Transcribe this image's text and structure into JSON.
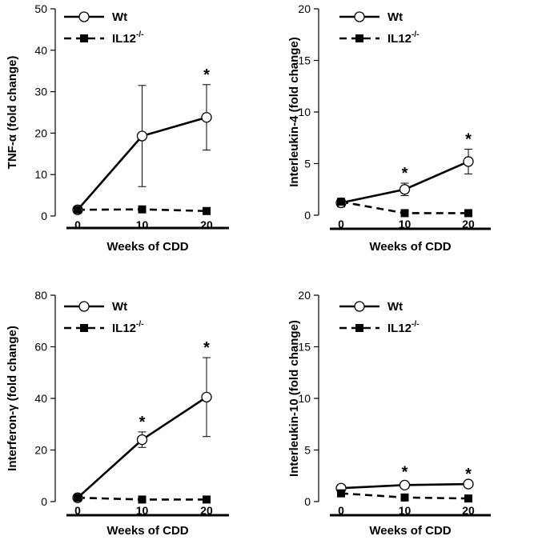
{
  "chart_data": [
    {
      "type": "line",
      "ylabel": "TNF-α (fold change)",
      "xlabel": "Weeks of CDD",
      "x": [
        0,
        10,
        20
      ],
      "x_tick_labels": [
        "0",
        "10",
        "20"
      ],
      "ylim": [
        0,
        50
      ],
      "y_ticks": [
        0,
        10,
        20,
        30,
        40,
        50
      ],
      "legend": {
        "position": "top-left",
        "entries": [
          "Wt",
          "IL12"
        ]
      },
      "legend_superscript": "-/-",
      "series": [
        {
          "name": "Wt",
          "values": [
            1.5,
            19.3,
            23.8
          ],
          "error": [
            0,
            12.2,
            7.9
          ],
          "marker": "open-circle",
          "line": "solid"
        },
        {
          "name": "IL12-/-",
          "values": [
            1.5,
            1.6,
            1.2
          ],
          "error": [
            0,
            0,
            0
          ],
          "marker": "filled-square",
          "line": "dashed"
        }
      ],
      "significance": [
        {
          "x": 20,
          "label": "*"
        }
      ]
    },
    {
      "type": "line",
      "ylabel": "Interleukin-4 (fold change)",
      "xlabel": "Weeks of CDD",
      "x": [
        0,
        10,
        20
      ],
      "x_tick_labels": [
        "0",
        "10",
        "20"
      ],
      "ylim": [
        0,
        20
      ],
      "y_ticks": [
        0,
        5,
        10,
        15,
        20
      ],
      "legend": {
        "position": "top-left",
        "entries": [
          "Wt",
          "IL12"
        ]
      },
      "legend_superscript": "-/-",
      "series": [
        {
          "name": "Wt",
          "values": [
            1.2,
            2.5,
            5.2
          ],
          "error": [
            0.4,
            0.6,
            1.2
          ],
          "marker": "open-circle",
          "line": "solid"
        },
        {
          "name": "IL12-/-",
          "values": [
            1.3,
            0.2,
            0.2
          ],
          "error": [
            0.3,
            0,
            0
          ],
          "marker": "filled-square",
          "line": "dashed"
        }
      ],
      "significance": [
        {
          "x": 10,
          "label": "*"
        },
        {
          "x": 20,
          "label": "*"
        }
      ]
    },
    {
      "type": "line",
      "ylabel": "Interferon-γ (fold change)",
      "xlabel": "Weeks of CDD",
      "x": [
        0,
        10,
        20
      ],
      "x_tick_labels": [
        "0",
        "10",
        "20"
      ],
      "ylim": [
        0,
        80
      ],
      "y_ticks": [
        0,
        20,
        40,
        60,
        80
      ],
      "legend": {
        "position": "top-left",
        "entries": [
          "Wt",
          "IL12"
        ]
      },
      "legend_superscript": "-/-",
      "series": [
        {
          "name": "Wt",
          "values": [
            1.5,
            24,
            40.5
          ],
          "error": [
            0,
            3,
            15.3
          ],
          "marker": "open-circle",
          "line": "solid"
        },
        {
          "name": "IL12-/-",
          "values": [
            1.5,
            0.8,
            0.8
          ],
          "error": [
            0,
            0,
            0
          ],
          "marker": "filled-square",
          "line": "dashed"
        }
      ],
      "significance": [
        {
          "x": 10,
          "label": "*"
        },
        {
          "x": 20,
          "label": "*"
        }
      ]
    },
    {
      "type": "line",
      "ylabel": "Interleukin-10 (fold change)",
      "xlabel": "Weeks of CDD",
      "x": [
        0,
        10,
        20
      ],
      "x_tick_labels": [
        "0",
        "10",
        "20"
      ],
      "ylim": [
        0,
        20
      ],
      "y_ticks": [
        0,
        5,
        10,
        15,
        20
      ],
      "legend": {
        "position": "top-left",
        "entries": [
          "Wt",
          "IL12"
        ]
      },
      "legend_superscript": "-/-",
      "series": [
        {
          "name": "Wt",
          "values": [
            1.3,
            1.6,
            1.7
          ],
          "error": [
            0,
            0.3,
            0
          ],
          "marker": "open-circle",
          "line": "solid"
        },
        {
          "name": "IL12-/-",
          "values": [
            0.8,
            0.4,
            0.3
          ],
          "error": [
            0,
            0,
            0
          ],
          "marker": "filled-square",
          "line": "dashed"
        }
      ],
      "significance": [
        {
          "x": 10,
          "label": "*"
        },
        {
          "x": 20,
          "label": "*"
        }
      ]
    }
  ]
}
